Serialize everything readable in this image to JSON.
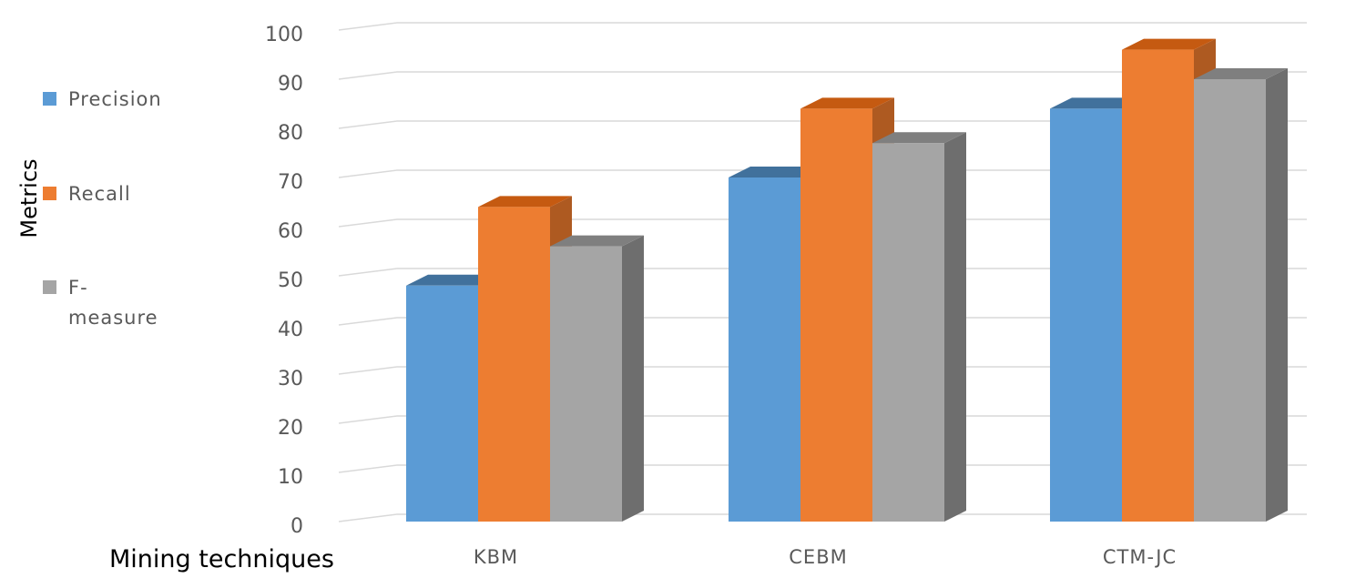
{
  "chart_data": {
    "type": "bar",
    "xlabel": "Mining techniques",
    "ylabel": "Metrics",
    "ylim": [
      0,
      100
    ],
    "y_ticks": [
      "0",
      "10",
      "20",
      "30",
      "40",
      "50",
      "60",
      "70",
      "80",
      "90",
      "100"
    ],
    "categories": [
      "KBM",
      "CEBM",
      "CTM-JC"
    ],
    "series": [
      {
        "name": "Precision",
        "values": [
          48,
          70,
          84
        ],
        "color": "#5b9bd5",
        "top_color": "#41719c",
        "side_color": "#41719c"
      },
      {
        "name": "Recall",
        "values": [
          64,
          84,
          96
        ],
        "color": "#ed7d31",
        "top_color": "#c55a11",
        "side_color": "#ae5a21"
      },
      {
        "name": "F-measure",
        "values": [
          56,
          77,
          90
        ],
        "color": "#a5a5a5",
        "top_color": "#7f7f7f",
        "side_color": "#6e6e6e"
      }
    ],
    "legend": {
      "position": "left",
      "items": [
        {
          "label_lines": [
            "Precision"
          ]
        },
        {
          "label_lines": [
            "Recall"
          ]
        },
        {
          "label_lines": [
            "F-",
            "measure"
          ]
        }
      ]
    },
    "grid": true,
    "style": "3d-clustered-column"
  }
}
